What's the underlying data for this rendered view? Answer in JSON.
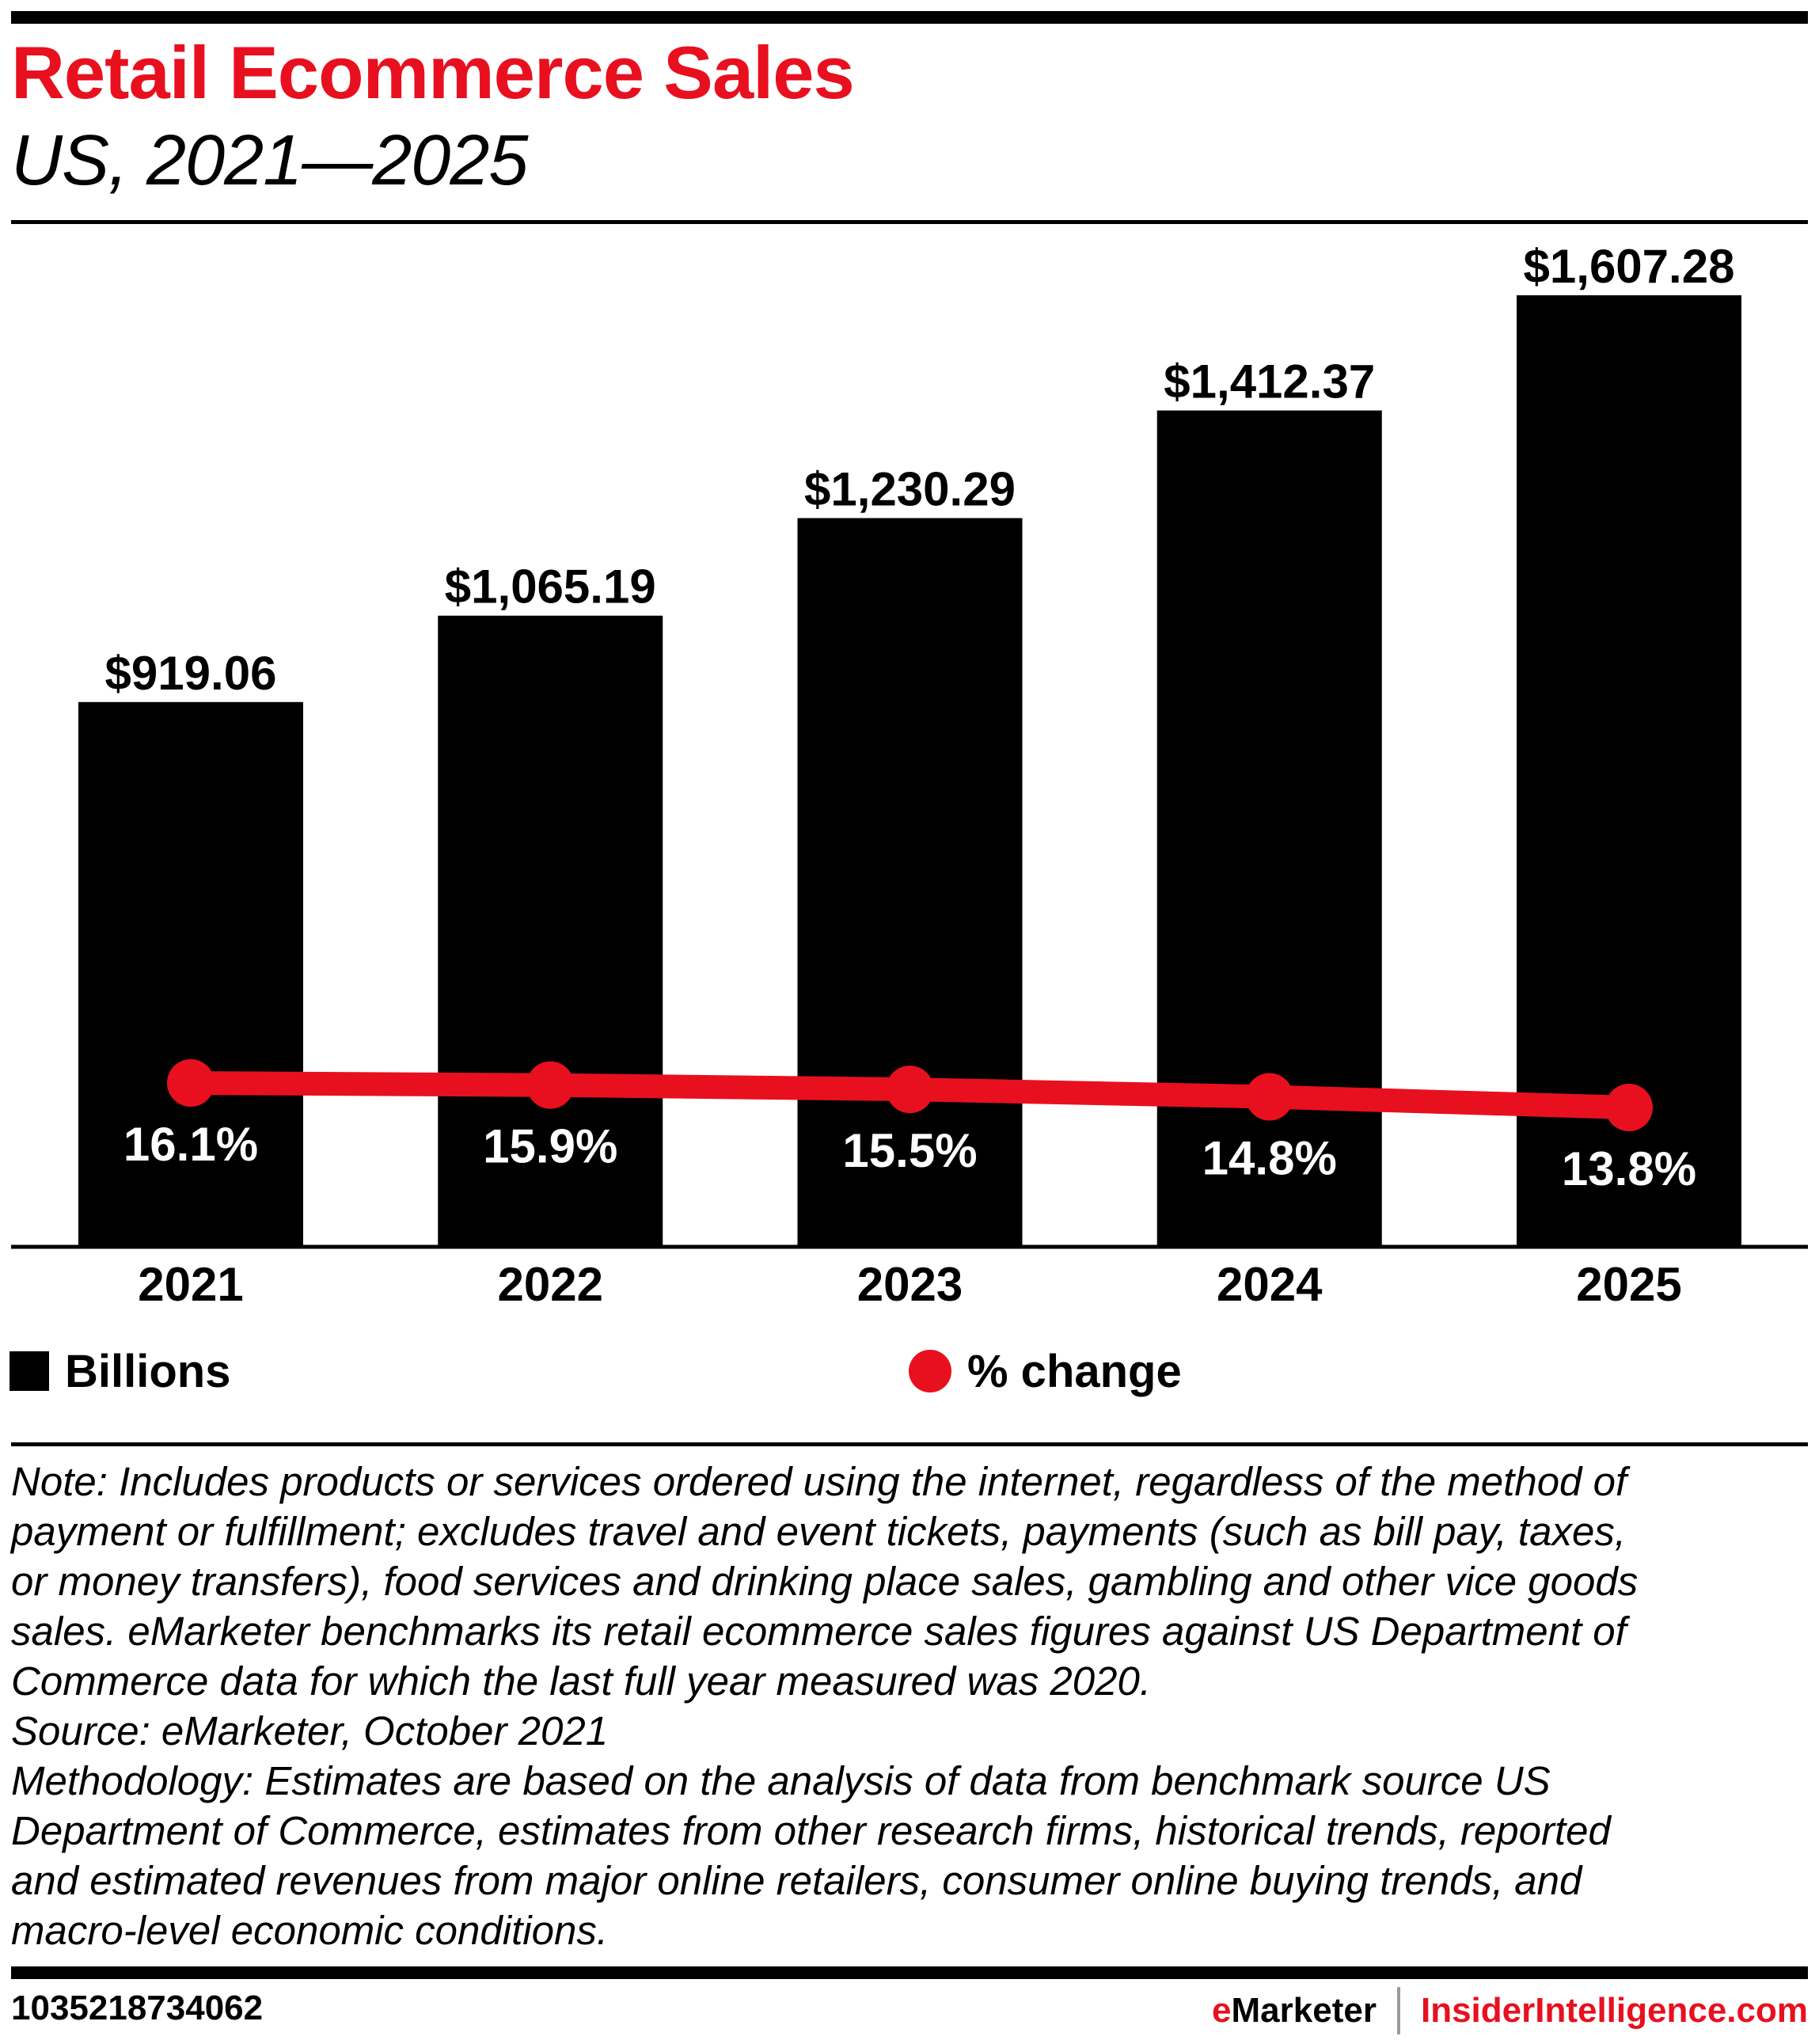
{
  "header": {
    "title": "Retail Ecommerce Sales",
    "subtitle": "US, 2021—2025"
  },
  "colors": {
    "accent": "#e8101f",
    "bar": "#000000",
    "text": "#000000",
    "label_on_bar": "#ffffff",
    "divider": "#9b9b9b"
  },
  "chart_data": {
    "type": "bar",
    "title": "Retail Ecommerce Sales",
    "subtitle": "US, 2021—2025",
    "categories": [
      "2021",
      "2022",
      "2023",
      "2024",
      "2025"
    ],
    "series": [
      {
        "name": "Billions",
        "type": "bar",
        "color": "#000000",
        "values": [
          919.06,
          1065.19,
          1230.29,
          1412.37,
          1607.28
        ],
        "labels": [
          "$919.06",
          "$1,065.19",
          "$1,230.29",
          "$1,412.37",
          "$1,607.28"
        ]
      },
      {
        "name": "% change",
        "type": "line",
        "color": "#e8101f",
        "values": [
          16.1,
          15.9,
          15.5,
          14.8,
          13.8
        ],
        "labels": [
          "16.1%",
          "15.9%",
          "15.5%",
          "14.8%",
          "13.8%"
        ]
      }
    ],
    "xlabel": "",
    "ylabel": "",
    "ylim": [
      0,
      1607.28
    ],
    "grid": false,
    "legend": {
      "position": "bottom",
      "entries": [
        "Billions",
        "% change"
      ]
    }
  },
  "legend": {
    "bars_label": "Billions",
    "line_label": "% change"
  },
  "notes": {
    "lines": [
      "Note: Includes products or services ordered using the internet, regardless of the method of",
      "payment or fulfillment; excludes travel and event tickets, payments (such as bill pay, taxes,",
      "or money transfers), food services and drinking place sales, gambling and other vice goods",
      "sales. eMarketer benchmarks its retail ecommerce sales figures against US Department of",
      "Commerce data for which the last full year measured was 2020.",
      "Source: eMarketer, October 2021",
      "Methodology: Estimates are based on the analysis of data from benchmark source US",
      "Department of Commerce, estimates from other research firms, historical trends, reported",
      "and estimated revenues from major online retailers, consumer online buying trends, and",
      "macro-level economic conditions."
    ]
  },
  "footer": {
    "chart_id": "1035218734062",
    "brand_e": "e",
    "brand_rest": "Marketer",
    "site": "InsiderIntelligence.com"
  }
}
